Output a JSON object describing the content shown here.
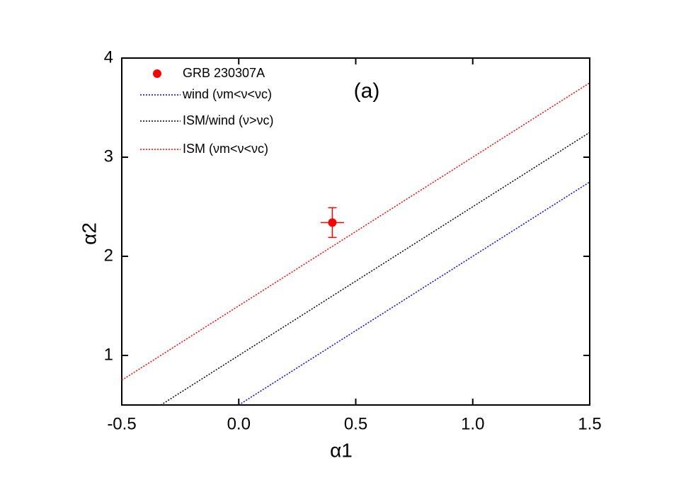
{
  "chart_data": {
    "type": "scatter",
    "annotation": "(a)",
    "x_label": "α1",
    "y_label": "α2",
    "xlim": [
      -0.5,
      1.5
    ],
    "ylim": [
      0.5,
      4
    ],
    "xticks": [
      -0.5,
      0.0,
      0.5,
      1.0,
      1.5
    ],
    "yticks": [
      1,
      2,
      3,
      4
    ],
    "legend": "upper left",
    "series": [
      {
        "name": "GRB 230307A",
        "color": "#ff0000",
        "mode": "point",
        "x": [
          0.4
        ],
        "values": [
          2.34
        ],
        "xerr": [
          0.05
        ],
        "yerr": [
          0.15
        ]
      },
      {
        "name": "wind (νm<ν<νc)",
        "color": "#0000ff",
        "mode": "dotted",
        "x": [
          0.0,
          1.5
        ],
        "values": [
          0.5,
          2.75
        ]
      },
      {
        "name": "ISM/wind (ν>νc)",
        "color": "#000000",
        "mode": "dotted",
        "x": [
          -0.333,
          1.5
        ],
        "values": [
          0.5,
          3.25
        ]
      },
      {
        "name": "ISM (νm<ν<νc)",
        "color": "#ff0000",
        "mode": "dotted",
        "x": [
          -0.5,
          1.5
        ],
        "values": [
          0.75,
          3.75
        ]
      }
    ]
  }
}
